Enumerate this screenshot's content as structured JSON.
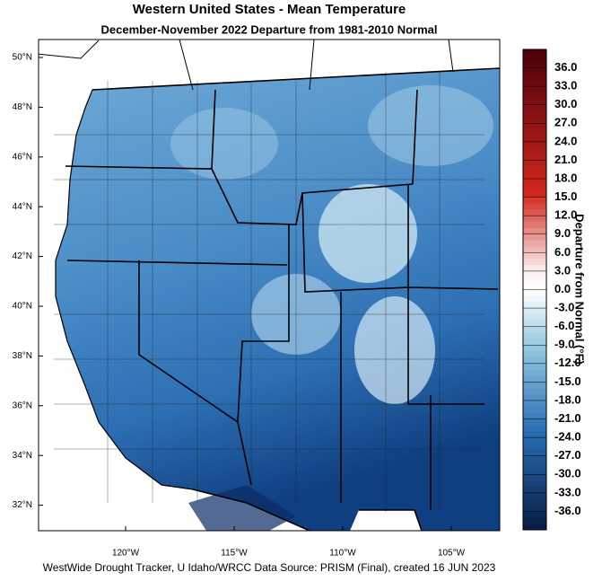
{
  "header": {
    "title": "Western United States - Mean Temperature",
    "subtitle": "December-November 2022  Departure from 1981-2010 Normal"
  },
  "map": {
    "latitude_labels": [
      "50°N",
      "48°N",
      "46°N",
      "44°N",
      "42°N",
      "40°N",
      "38°N",
      "36°N",
      "34°N",
      "32°N"
    ],
    "longitude_labels": [
      "120°W",
      "115°W",
      "110°W",
      "105°W"
    ]
  },
  "colorbar": {
    "title": "Departure from Normal (°F)",
    "labels": [
      "36.0",
      "33.0",
      "30.0",
      "27.0",
      "24.0",
      "21.0",
      "18.0",
      "15.0",
      "12.0",
      "9.0",
      "6.0",
      "3.0",
      "0.0",
      "-3.0",
      "-6.0",
      "-9.0",
      "-12.0",
      "-15.0",
      "-18.0",
      "-21.0",
      "-24.0",
      "-27.0",
      "-30.0",
      "-33.0",
      "-36.0"
    ]
  },
  "footer": "WestWide Drought Tracker, U Idaho/WRCC Data Source: PRISM (Final), created 16 JUN 2023"
}
